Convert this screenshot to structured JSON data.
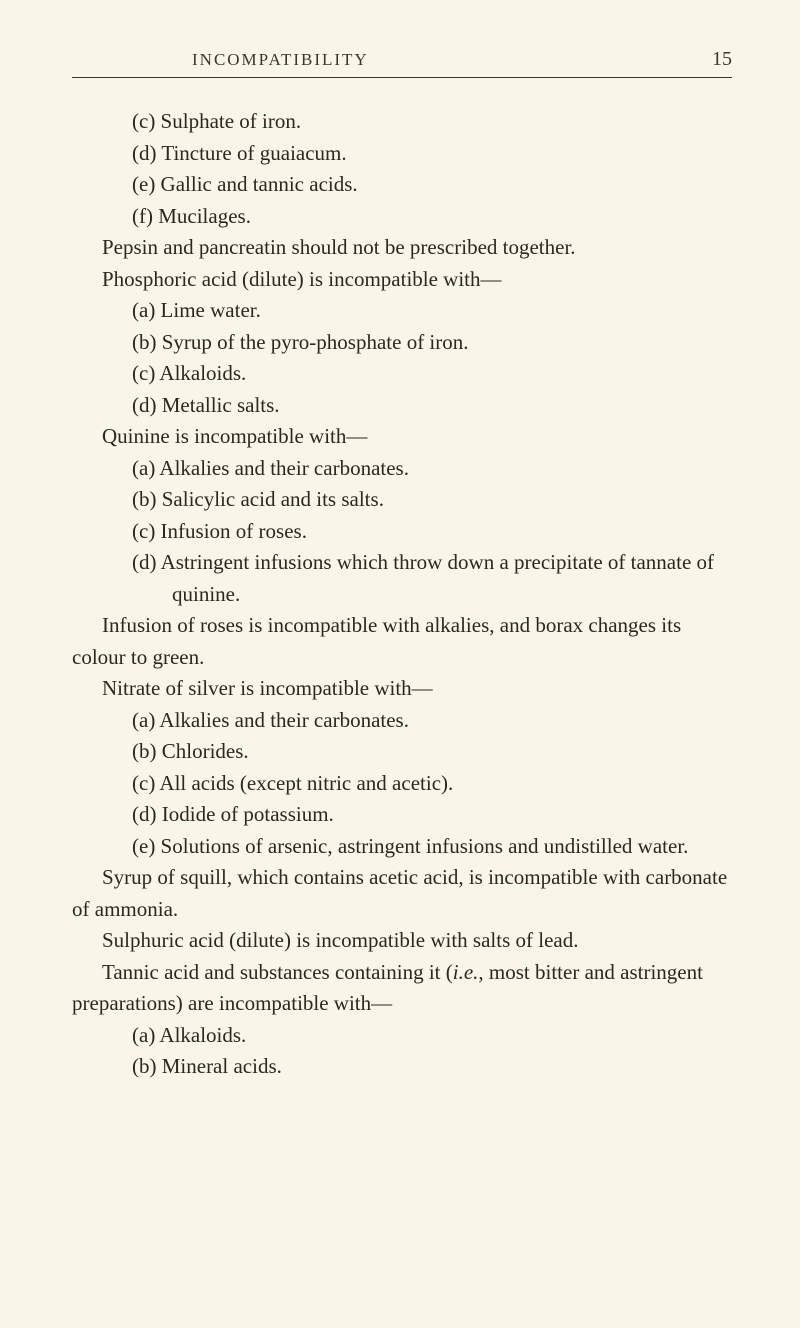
{
  "header": {
    "title": "INCOMPATIBILITY",
    "page_number": "15"
  },
  "lines": {
    "l1": "(c) Sulphate of iron.",
    "l2": "(d) Tincture of guaiacum.",
    "l3": "(e) Gallic and tannic acids.",
    "l4": "(f) Mucilages.",
    "l5": "Pepsin and pancreatin should not be prescribed together.",
    "l6": "Phosphoric acid (dilute) is incompatible with—",
    "l7": "(a) Lime water.",
    "l8": "(b) Syrup of the pyro-phosphate of iron.",
    "l9": "(c) Alkaloids.",
    "l10": "(d) Metallic salts.",
    "l11": "Quinine is incompatible with—",
    "l12": "(a) Alkalies and their carbonates.",
    "l13": "(b) Salicylic acid and its salts.",
    "l14": "(c) Infusion of roses.",
    "l15": "(d) Astringent infusions which throw down a precipitate of tannate of quinine.",
    "l16": "Infusion of roses is incompatible with alkalies, and borax changes its colour to green.",
    "l17": "Nitrate of silver is incompatible with—",
    "l18": "(a) Alkalies and their carbonates.",
    "l19": "(b) Chlorides.",
    "l20": "(c) All acids (except nitric and acetic).",
    "l21": "(d) Iodide of potassium.",
    "l22": "(e) Solutions of arsenic, astringent infusions and undistilled water.",
    "l23": "Syrup of squill, which contains acetic acid, is incompatible with carbonate of ammonia.",
    "l24": "Sulphuric acid (dilute) is incompatible with salts of lead.",
    "l25a": "Tannic acid and substances containing it (",
    "l25b": "i.e.",
    "l25c": ", most bitter and astringent preparations) are incompatible with—",
    "l26": "(a) Alkaloids.",
    "l27": "(b) Mineral acids."
  },
  "style": {
    "background_color": "#f9f5e8",
    "text_color": "#2a2820",
    "header_color": "#3a3628",
    "body_fontsize": 21,
    "header_fontsize": 17,
    "pagenum_fontsize": 20,
    "line_height": 1.5
  }
}
